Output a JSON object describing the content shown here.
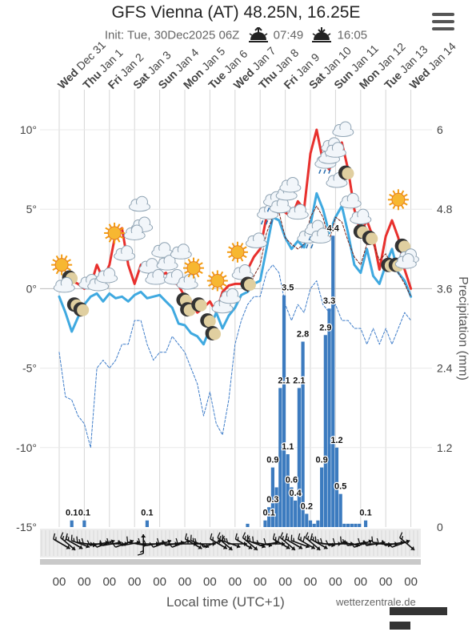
{
  "header": {
    "title": "GFS Vienna (AT) 48.25N, 16.25E",
    "init": "Init: Tue, 30Dec2025 06Z",
    "sunrise": "07:49",
    "sunset": "16:05"
  },
  "footer": {
    "xlabel": "Local time (UTC+1)",
    "credit": "wetterzentrale.de"
  },
  "colors": {
    "max_temp": "#e8302d",
    "min_temp": "#3fa9e0",
    "precip": "#3c7bbf",
    "dew_max": "#7a2318",
    "dew_min": "#3d7cc9"
  },
  "icons": [
    "sun-icon",
    "cloud-icon",
    "moon-icon",
    "rain-icon",
    "menu-icon"
  ],
  "chart_data": {
    "type": "line",
    "title": "GFS Vienna (AT) 48.25N, 16.25E",
    "xlabel": "Local time (UTC+1)",
    "ylabel": "",
    "y2label": "Precipitation (mm)",
    "ylim": [
      -15,
      10
    ],
    "y2lim": [
      0,
      6
    ],
    "yticks": [
      "10°",
      "5°",
      "0°",
      "-5°",
      "-10°",
      "-15°"
    ],
    "y2ticks": [
      "6",
      "4.8",
      "3.6",
      "2.4",
      "1.2",
      "0"
    ],
    "grid": true,
    "categories": [
      {
        "dow": "Wed",
        "date": "Dec 31"
      },
      {
        "dow": "Thu",
        "date": "Jan 1"
      },
      {
        "dow": "Fri",
        "date": "Jan 2"
      },
      {
        "dow": "Sat",
        "date": "Jan 3"
      },
      {
        "dow": "Sun",
        "date": "Jan 4"
      },
      {
        "dow": "Mon",
        "date": "Jan 5"
      },
      {
        "dow": "Tue",
        "date": "Jan 6"
      },
      {
        "dow": "Wed",
        "date": "Jan 7"
      },
      {
        "dow": "Thu",
        "date": "Jan 8"
      },
      {
        "dow": "Fri",
        "date": "Jan 9"
      },
      {
        "dow": "Sat",
        "date": "Jan 10"
      },
      {
        "dow": "Sun",
        "date": "Jan 11"
      },
      {
        "dow": "Mon",
        "date": "Jan 12"
      },
      {
        "dow": "Tue",
        "date": "Jan 13"
      },
      {
        "dow": "Wed",
        "date": "Jan 14"
      }
    ],
    "hour_labels": [
      "00",
      "00",
      "00",
      "00",
      "00",
      "00",
      "00",
      "00",
      "00",
      "00",
      "00",
      "00",
      "00",
      "00",
      "00"
    ],
    "series": [
      {
        "kind": "max-temperature",
        "x": [
          0,
          0.25,
          0.5,
          0.75,
          1,
          1.25,
          1.5,
          1.75,
          2,
          2.25,
          2.5,
          2.75,
          3,
          3.25,
          3.5,
          3.75,
          4,
          4.25,
          4.5,
          4.75,
          5,
          5.25,
          5.5,
          5.75,
          6,
          6.25,
          6.5,
          6.75,
          7,
          7.25,
          7.5,
          7.75,
          8,
          8.25,
          8.5,
          8.75,
          9,
          9.25,
          9.5,
          9.75,
          10,
          10.25,
          10.5,
          10.75,
          11,
          11.25,
          11.5,
          11.75,
          12,
          12.25,
          12.5,
          12.75,
          13,
          13.25,
          13.5,
          13.75,
          14
        ],
        "values": [
          0,
          0.2,
          0.5,
          0.3,
          0,
          0.2,
          1.5,
          0.6,
          1.5,
          3.5,
          3.8,
          1.5,
          0.3,
          1.5,
          1.2,
          0.5,
          0.8,
          1,
          0.5,
          0.2,
          -0.5,
          -0.8,
          -1.5,
          -1.2,
          -0.8,
          -1.5,
          -0.2,
          0.2,
          0.3,
          0.3,
          1.2,
          2,
          2.5,
          4.5,
          5.2,
          5,
          4.8,
          4.5,
          5.5,
          5,
          8.5,
          10,
          8,
          7.5,
          8.5,
          9.2,
          7.5,
          5,
          3.5,
          4.3,
          3.2,
          1.2,
          3.3,
          4.3,
          3.2,
          1.2,
          0
        ]
      },
      {
        "kind": "min-temperature",
        "x": [
          0,
          0.25,
          0.5,
          0.75,
          1,
          1.25,
          1.5,
          1.75,
          2,
          2.25,
          2.5,
          2.75,
          3,
          3.25,
          3.5,
          3.75,
          4,
          4.25,
          4.5,
          4.75,
          5,
          5.25,
          5.5,
          5.75,
          6,
          6.25,
          6.5,
          6.75,
          7,
          7.25,
          7.5,
          7.75,
          8,
          8.25,
          8.5,
          8.75,
          9,
          9.25,
          9.5,
          9.75,
          10,
          10.25,
          10.5,
          10.75,
          11,
          11.25,
          11.5,
          11.75,
          12,
          12.25,
          12.5,
          12.75,
          13,
          13.25,
          13.5,
          13.75,
          14
        ],
        "values": [
          -0.5,
          -1.5,
          -2.7,
          -1.8,
          -1,
          -0.5,
          -0.3,
          -0.8,
          -0.3,
          -0.6,
          -0.5,
          -0.8,
          -0.4,
          -0.2,
          -0.6,
          -0.5,
          -0.4,
          -0.8,
          -1.2,
          -2.2,
          -2.3,
          -2.8,
          -3,
          -3.5,
          -2.5,
          -1.5,
          -2.5,
          -1.7,
          -1.2,
          -0.4,
          -0.2,
          0.3,
          0.5,
          2.5,
          4.5,
          4.3,
          3.2,
          2.5,
          3,
          2.6,
          4,
          6,
          5,
          3.5,
          4.5,
          5.2,
          3.5,
          1.5,
          1,
          2.5,
          0.8,
          0.3,
          1.5,
          2.5,
          1,
          0.5,
          -0.5
        ]
      },
      {
        "kind": "dew-point-upper",
        "x": [
          7.5,
          7.75,
          8,
          8.25,
          8.5,
          8.75,
          9,
          9.25,
          9.5,
          9.75,
          10,
          10.25,
          10.5,
          10.75,
          11,
          11.25,
          11.5,
          11.75,
          12,
          12.25,
          12.5,
          12.75,
          13,
          13.25,
          13.5,
          13.75,
          14
        ],
        "values": [
          -0.2,
          0.8,
          1.5,
          3.5,
          4.5,
          4.8,
          3.2,
          2.8,
          2.5,
          2.8,
          4.5,
          5.2,
          4.5,
          3,
          4.5,
          4.2,
          3,
          2,
          1.5,
          2.8,
          2.8,
          1.8,
          2.2,
          1.5,
          1,
          0.3,
          -0.5
        ]
      },
      {
        "kind": "dew-point-lower",
        "x": [
          0,
          0.25,
          0.5,
          0.75,
          1,
          1.25,
          1.5,
          1.75,
          2,
          2.25,
          2.5,
          2.75,
          3,
          3.25,
          3.5,
          3.75,
          4,
          4.25,
          4.5,
          4.75,
          5,
          5.25,
          5.5,
          5.75,
          6,
          6.25,
          6.5,
          6.75,
          7,
          7.25,
          7.5,
          7.75,
          8,
          8.25,
          8.5,
          8.75,
          9,
          9.25,
          9.5,
          9.75,
          10,
          10.25,
          10.5,
          10.75,
          11,
          11.25,
          11.5,
          11.75,
          12,
          12.25,
          12.5,
          12.75,
          13,
          13.25,
          13.5,
          13.75,
          14
        ],
        "values": [
          -4,
          -6.8,
          -7,
          -8,
          -8.5,
          -10,
          -5,
          -4.5,
          -5,
          -4.5,
          -3.5,
          -3.5,
          -2,
          -2,
          -3.5,
          -4.5,
          -4,
          -4,
          -3,
          -3.5,
          -4,
          -5,
          -6,
          -8,
          -6.5,
          -8.5,
          -9.2,
          -7,
          -3.5,
          -2,
          -1,
          -0.5,
          -0.5,
          1,
          1.5,
          1,
          -1,
          -2,
          -1,
          -1.5,
          0,
          0.5,
          -1,
          -1.5,
          -1,
          -2,
          -2,
          -2.5,
          -2.5,
          -3.5,
          -2.5,
          -3.5,
          -2.5,
          -3.5,
          -2.5,
          -1.5,
          -2
        ]
      }
    ],
    "precipitation": {
      "x": [
        0.5,
        1,
        3.5,
        7.5,
        8.2,
        8.35,
        8.5,
        8.65,
        8.8,
        8.95,
        9.1,
        9.25,
        9.4,
        9.55,
        9.7,
        9.85,
        10,
        10.15,
        10.3,
        10.45,
        10.6,
        10.75,
        10.9,
        11.05,
        11.2,
        11.35,
        11.5,
        11.65,
        11.8,
        11.95,
        12.2
      ],
      "values": [
        0.1,
        0.1,
        0.1,
        0.05,
        0.1,
        0.3,
        0.9,
        0.6,
        2.1,
        3.5,
        1.1,
        0.6,
        0.4,
        2.1,
        2.8,
        0.2,
        0.1,
        0.05,
        0.1,
        0.9,
        2.9,
        3.3,
        4.4,
        1.2,
        0.5,
        0.05,
        0.05,
        0.05,
        0.05,
        0.05,
        0.1
      ]
    },
    "precip_labels": [
      {
        "x": 0.5,
        "value": "0.1"
      },
      {
        "x": 1,
        "value": "0.1"
      },
      {
        "x": 3.5,
        "value": "0.1"
      },
      {
        "x": 8.35,
        "value": "0.1"
      },
      {
        "x": 8.5,
        "value": "0.3"
      },
      {
        "x": 8.5,
        "value": "0.9"
      },
      {
        "x": 8.95,
        "value": "2.1"
      },
      {
        "x": 9.1,
        "value": "3.5"
      },
      {
        "x": 9.1,
        "value": "1.1"
      },
      {
        "x": 9.25,
        "value": "0.6"
      },
      {
        "x": 9.4,
        "value": "0.4"
      },
      {
        "x": 9.55,
        "value": "2.1"
      },
      {
        "x": 9.7,
        "value": "2.8"
      },
      {
        "x": 9.85,
        "value": "0.2"
      },
      {
        "x": 10.45,
        "value": "0.9"
      },
      {
        "x": 10.6,
        "value": "2.9"
      },
      {
        "x": 10.75,
        "value": "3.3"
      },
      {
        "x": 10.9,
        "value": "4.4"
      },
      {
        "x": 11.05,
        "value": "1.2"
      },
      {
        "x": 11.2,
        "value": "0.5"
      },
      {
        "x": 12.2,
        "value": "0.1"
      }
    ],
    "wind_barbs": [
      {
        "x": 0.1,
        "dir": 300,
        "speed": 10
      },
      {
        "x": 0.35,
        "dir": 310,
        "speed": 15
      },
      {
        "x": 0.6,
        "dir": 300,
        "speed": 10
      },
      {
        "x": 0.85,
        "dir": 290,
        "speed": 10
      },
      {
        "x": 1.1,
        "dir": 280,
        "speed": 10
      },
      {
        "x": 1.35,
        "dir": 270,
        "speed": 5
      },
      {
        "x": 1.6,
        "dir": 260,
        "speed": 10
      },
      {
        "x": 1.85,
        "dir": 250,
        "speed": 5
      },
      {
        "x": 2.1,
        "dir": 260,
        "speed": 5
      },
      {
        "x": 2.35,
        "dir": 270,
        "speed": 10
      },
      {
        "x": 2.6,
        "dir": 250,
        "speed": 5
      },
      {
        "x": 2.85,
        "dir": 260,
        "speed": 10
      },
      {
        "x": 3.1,
        "dir": 280,
        "speed": 5
      },
      {
        "x": 3.35,
        "dir": 180,
        "speed": 10
      },
      {
        "x": 3.6,
        "dir": 270,
        "speed": 5
      },
      {
        "x": 3.85,
        "dir": 260,
        "speed": 5
      },
      {
        "x": 4.1,
        "dir": 250,
        "speed": 5
      },
      {
        "x": 4.35,
        "dir": 270,
        "speed": 5
      },
      {
        "x": 4.6,
        "dir": 260,
        "speed": 5
      },
      {
        "x": 4.85,
        "dir": 250,
        "speed": 5
      },
      {
        "x": 5.1,
        "dir": 270,
        "speed": 5
      },
      {
        "x": 5.35,
        "dir": 300,
        "speed": 10
      },
      {
        "x": 5.6,
        "dir": 290,
        "speed": 10
      },
      {
        "x": 5.85,
        "dir": 270,
        "speed": 5
      },
      {
        "x": 6.1,
        "dir": 250,
        "speed": 5
      },
      {
        "x": 6.35,
        "dir": 300,
        "speed": 10
      },
      {
        "x": 6.6,
        "dir": 310,
        "speed": 15
      },
      {
        "x": 6.85,
        "dir": 290,
        "speed": 10
      },
      {
        "x": 7.1,
        "dir": 270,
        "speed": 5
      },
      {
        "x": 7.35,
        "dir": 300,
        "speed": 10
      },
      {
        "x": 7.6,
        "dir": 310,
        "speed": 15
      },
      {
        "x": 7.85,
        "dir": 290,
        "speed": 10
      },
      {
        "x": 8.1,
        "dir": 280,
        "speed": 5
      },
      {
        "x": 8.35,
        "dir": 260,
        "speed": 5
      },
      {
        "x": 8.6,
        "dir": 270,
        "speed": 5
      },
      {
        "x": 8.85,
        "dir": 300,
        "speed": 15
      },
      {
        "x": 9.1,
        "dir": 310,
        "speed": 15
      },
      {
        "x": 9.35,
        "dir": 300,
        "speed": 10
      },
      {
        "x": 9.6,
        "dir": 290,
        "speed": 10
      },
      {
        "x": 9.85,
        "dir": 300,
        "speed": 15
      },
      {
        "x": 10.1,
        "dir": 310,
        "speed": 15
      },
      {
        "x": 10.35,
        "dir": 300,
        "speed": 10
      },
      {
        "x": 10.6,
        "dir": 280,
        "speed": 10
      },
      {
        "x": 10.85,
        "dir": 270,
        "speed": 5
      },
      {
        "x": 11.1,
        "dir": 260,
        "speed": 5
      },
      {
        "x": 11.35,
        "dir": 270,
        "speed": 5
      },
      {
        "x": 11.6,
        "dir": 280,
        "speed": 10
      },
      {
        "x": 11.85,
        "dir": 260,
        "speed": 5
      },
      {
        "x": 12.1,
        "dir": 250,
        "speed": 5
      },
      {
        "x": 12.35,
        "dir": 270,
        "speed": 5
      },
      {
        "x": 12.6,
        "dir": 260,
        "speed": 5
      },
      {
        "x": 12.85,
        "dir": 280,
        "speed": 5
      },
      {
        "x": 13.1,
        "dir": 270,
        "speed": 5
      },
      {
        "x": 13.35,
        "dir": 260,
        "speed": 5
      },
      {
        "x": 13.6,
        "dir": 250,
        "speed": 5
      },
      {
        "x": 13.85,
        "dir": 310,
        "speed": 10
      }
    ],
    "weather_symbols": [
      {
        "x": 0.1,
        "t": 1.5,
        "kind": "sun"
      },
      {
        "x": 0.4,
        "t": 0.7,
        "kind": "moon"
      },
      {
        "x": 0.2,
        "t": 0.2,
        "kind": "cloud"
      },
      {
        "x": 0.6,
        "t": -1,
        "kind": "moon"
      },
      {
        "x": 0.85,
        "t": -1.3,
        "kind": "moon"
      },
      {
        "x": 1.2,
        "t": 0.4,
        "kind": "cloud"
      },
      {
        "x": 1.55,
        "t": 0.3,
        "kind": "cloud"
      },
      {
        "x": 1.9,
        "t": 0.8,
        "kind": "cloud"
      },
      {
        "x": 2.2,
        "t": 3.5,
        "kind": "sun"
      },
      {
        "x": 2.6,
        "t": 2.2,
        "kind": "cloud"
      },
      {
        "x": 3.2,
        "t": 5.3,
        "kind": "cloud"
      },
      {
        "x": 3.3,
        "t": 4,
        "kind": "cloud"
      },
      {
        "x": 3.0,
        "t": 3.5,
        "kind": "cloud"
      },
      {
        "x": 3.6,
        "t": 1.4,
        "kind": "cloud"
      },
      {
        "x": 3.85,
        "t": 0.7,
        "kind": "cloud"
      },
      {
        "x": 4.1,
        "t": 2.4,
        "kind": "cloud"
      },
      {
        "x": 4.3,
        "t": 1.6,
        "kind": "cloud"
      },
      {
        "x": 4.6,
        "t": 0.7,
        "kind": "cloud"
      },
      {
        "x": 4.85,
        "t": 2.3,
        "kind": "cloud"
      },
      {
        "x": 5.1,
        "t": 0.4,
        "kind": "cloud"
      },
      {
        "x": 5.35,
        "t": 1.3,
        "kind": "sun"
      },
      {
        "x": 4.95,
        "t": -0.7,
        "kind": "moon"
      },
      {
        "x": 5.1,
        "t": -1.3,
        "kind": "moon"
      },
      {
        "x": 5.55,
        "t": -1,
        "kind": "moon"
      },
      {
        "x": 5.9,
        "t": -2,
        "kind": "moon"
      },
      {
        "x": 6.1,
        "t": -2.8,
        "kind": "moon"
      },
      {
        "x": 6.3,
        "t": 0.5,
        "kind": "sun"
      },
      {
        "x": 6.5,
        "t": -1.1,
        "kind": "cloud"
      },
      {
        "x": 6.8,
        "t": -0.5,
        "kind": "cloud"
      },
      {
        "x": 7.1,
        "t": 2.3,
        "kind": "sun"
      },
      {
        "x": 7.3,
        "t": 1,
        "kind": "cloud"
      },
      {
        "x": 7.5,
        "t": 0.3,
        "kind": "moon"
      },
      {
        "x": 7.85,
        "t": 3,
        "kind": "cloud"
      },
      {
        "x": 8.3,
        "t": 4.8,
        "kind": "rain"
      },
      {
        "x": 8.55,
        "t": 5.6,
        "kind": "rain"
      },
      {
        "x": 8.8,
        "t": 5.2,
        "kind": "cloud"
      },
      {
        "x": 9.05,
        "t": 6,
        "kind": "cloud"
      },
      {
        "x": 9.2,
        "t": 6.5,
        "kind": "cloud"
      },
      {
        "x": 9.5,
        "t": 4.8,
        "kind": "cloud"
      },
      {
        "x": 9.9,
        "t": 3.3,
        "kind": "rain"
      },
      {
        "x": 10.2,
        "t": 3.8,
        "kind": "rain"
      },
      {
        "x": 10.4,
        "t": 3.3,
        "kind": "cloud"
      },
      {
        "x": 10.6,
        "t": 8,
        "kind": "rain"
      },
      {
        "x": 10.75,
        "t": 8.3,
        "kind": "cloud"
      },
      {
        "x": 10.85,
        "t": 9,
        "kind": "cloud"
      },
      {
        "x": 11.0,
        "t": 8.7,
        "kind": "cloud"
      },
      {
        "x": 11.3,
        "t": 10,
        "kind": "cloud"
      },
      {
        "x": 11.05,
        "t": 6.8,
        "kind": "cloud"
      },
      {
        "x": 11.4,
        "t": 7.3,
        "kind": "moon"
      },
      {
        "x": 11.6,
        "t": 5.5,
        "kind": "cloud"
      },
      {
        "x": 12.0,
        "t": 3.6,
        "kind": "moon"
      },
      {
        "x": 12.35,
        "t": 3.2,
        "kind": "moon"
      },
      {
        "x": 12.0,
        "t": 4.5,
        "kind": "cloud"
      },
      {
        "x": 13.5,
        "t": 5.6,
        "kind": "sun"
      },
      {
        "x": 13.1,
        "t": 1.5,
        "kind": "moon"
      },
      {
        "x": 13.4,
        "t": 1.5,
        "kind": "moon"
      },
      {
        "x": 13.65,
        "t": 2.7,
        "kind": "moon"
      },
      {
        "x": 13.9,
        "t": 2,
        "kind": "cloud"
      },
      {
        "x": 13.8,
        "t": 1.7,
        "kind": "cloud"
      }
    ]
  }
}
